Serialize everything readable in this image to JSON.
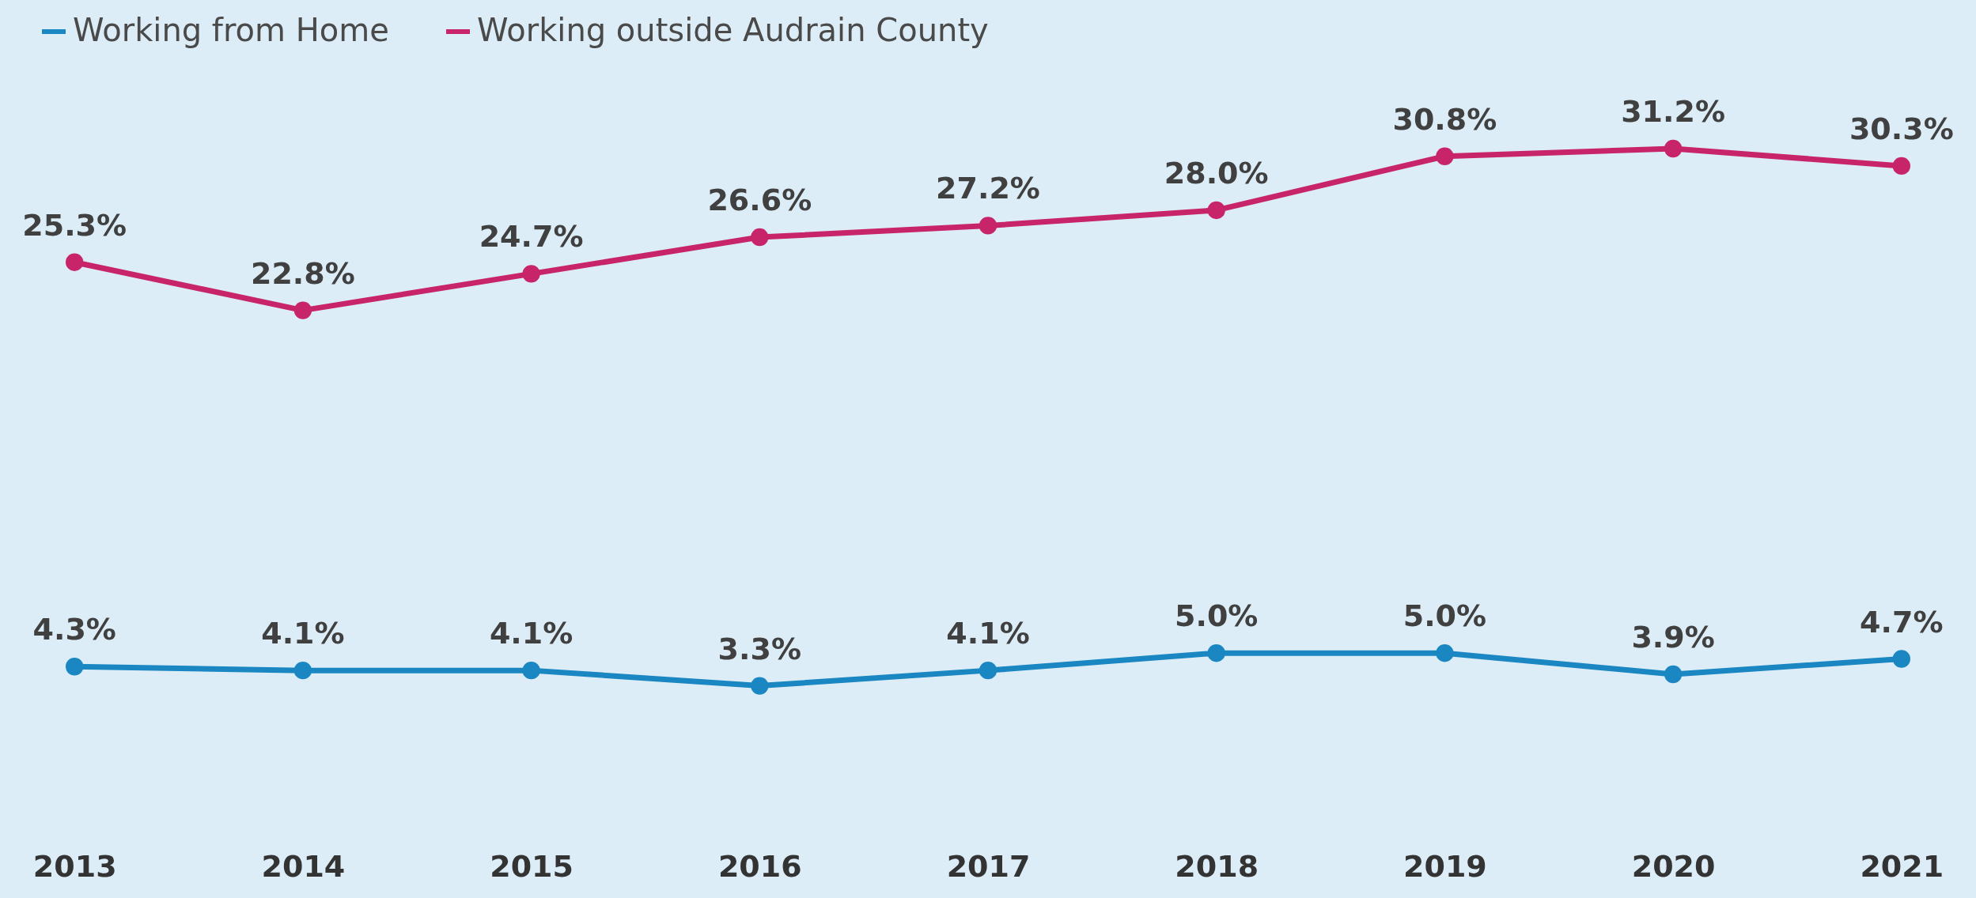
{
  "chart_data": {
    "type": "line",
    "categories": [
      "2013",
      "2014",
      "2015",
      "2016",
      "2017",
      "2018",
      "2019",
      "2020",
      "2021"
    ],
    "series": [
      {
        "name": "Working from Home",
        "color": "#1a87c2",
        "values": [
          4.3,
          4.1,
          4.1,
          3.3,
          4.1,
          5.0,
          5.0,
          3.9,
          4.7
        ],
        "value_labels": [
          "4.3%",
          "4.1%",
          "4.1%",
          "3.3%",
          "4.1%",
          "5.0%",
          "5.0%",
          "3.9%",
          "4.7%"
        ]
      },
      {
        "name": "Working outside Audrain County",
        "color": "#c8246a",
        "values": [
          25.3,
          22.8,
          24.7,
          26.6,
          27.2,
          28.0,
          30.8,
          31.2,
          30.3
        ],
        "value_labels": [
          "25.3%",
          "22.8%",
          "24.7%",
          "26.6%",
          "27.2%",
          "28.0%",
          "30.8%",
          "31.2%",
          "30.3%"
        ]
      }
    ],
    "legend": "top",
    "marker": "circle",
    "line_style": "solid",
    "grid": false,
    "tick_labels": "x"
  }
}
